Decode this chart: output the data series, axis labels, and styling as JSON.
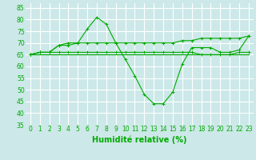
{
  "xlabel": "Humidité relative (%)",
  "xlim": [
    -0.5,
    23.5
  ],
  "ylim": [
    35,
    87
  ],
  "yticks": [
    35,
    40,
    45,
    50,
    55,
    60,
    65,
    70,
    75,
    80,
    85
  ],
  "xticks": [
    0,
    1,
    2,
    3,
    4,
    5,
    6,
    7,
    8,
    9,
    10,
    11,
    12,
    13,
    14,
    15,
    16,
    17,
    18,
    19,
    20,
    21,
    22,
    23
  ],
  "background_color": "#cce8e8",
  "grid_color": "#ffffff",
  "line_color": "#00aa00",
  "line1": [
    65,
    66,
    66,
    69,
    69,
    70,
    76,
    81,
    78,
    70,
    63,
    56,
    48,
    44,
    44,
    49,
    61,
    68,
    68,
    68,
    66,
    66,
    67,
    73
  ],
  "line2": [
    65,
    66,
    66,
    69,
    70,
    70,
    70,
    70,
    70,
    70,
    70,
    70,
    70,
    70,
    70,
    70,
    71,
    71,
    72,
    72,
    72,
    72,
    72,
    73
  ],
  "line3": [
    65,
    66,
    66,
    66,
    66,
    66,
    66,
    66,
    66,
    66,
    66,
    66,
    66,
    66,
    66,
    66,
    66,
    66,
    65,
    65,
    65,
    65,
    66,
    66
  ],
  "line4": [
    65,
    65,
    65,
    65,
    65,
    65,
    65,
    65,
    65,
    65,
    65,
    65,
    65,
    65,
    65,
    65,
    65,
    65,
    65,
    65,
    65,
    65,
    65,
    65
  ],
  "marker_size": 3,
  "line_width": 0.8,
  "xlabel_fontsize": 7,
  "tick_fontsize": 5.5
}
